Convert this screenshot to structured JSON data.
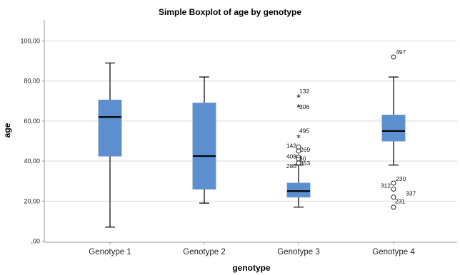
{
  "chart_data": {
    "type": "boxplot",
    "title": "Simple Boxplot of age by genotype",
    "xlabel": "genotype",
    "ylabel": "age",
    "ylim": [
      0,
      110
    ],
    "yticks": [
      0,
      20,
      40,
      60,
      80,
      100
    ],
    "ytick_labels": [
      ",00",
      "20,00",
      "40,00",
      "60,00",
      "80,00",
      "100,00"
    ],
    "grid": true,
    "categories": [
      "Genotype 1",
      "Genotype 2",
      "Genotype 3",
      "Genotype 4"
    ],
    "box_color": "#5b8fd0",
    "box_edge_color": "#6f95c8",
    "boxes": [
      {
        "category": "Genotype 1",
        "whisker_low": 7,
        "q1": 42.5,
        "median": 62,
        "q3": 70.5,
        "whisker_high": 89,
        "outliers": []
      },
      {
        "category": "Genotype 2",
        "whisker_low": 19,
        "q1": 26,
        "median": 42.5,
        "q3": 69,
        "whisker_high": 82,
        "outliers": []
      },
      {
        "category": "Genotype 3",
        "whisker_low": 17,
        "q1": 22,
        "median": 25,
        "q3": 29,
        "whisker_high": 38,
        "outliers": [
          {
            "id": "132",
            "value": 72,
            "marker": "star"
          },
          {
            "id": "306",
            "value": 67,
            "marker": "star"
          },
          {
            "id": "495",
            "value": 52,
            "marker": "star"
          },
          {
            "id": "142",
            "value": 47,
            "marker": "circle"
          },
          {
            "id": "269",
            "value": 45,
            "marker": "circle"
          },
          {
            "id": "408",
            "value": 42,
            "marker": "circle"
          },
          {
            "id": "80",
            "value": 41,
            "marker": "circle"
          },
          {
            "id": "353",
            "value": 39,
            "marker": "circle"
          },
          {
            "id": "280",
            "value": 39,
            "marker": "circle"
          }
        ]
      },
      {
        "category": "Genotype 4",
        "whisker_low": 38,
        "q1": 50,
        "median": 55,
        "q3": 63,
        "whisker_high": 82,
        "outliers": [
          {
            "id": "497",
            "value": 92,
            "marker": "circle"
          },
          {
            "id": "230",
            "value": 29,
            "marker": "circle"
          },
          {
            "id": "312",
            "value": 26,
            "marker": "circle"
          },
          {
            "id": "337",
            "value": 22,
            "marker": "circle"
          },
          {
            "id": "231",
            "value": 17,
            "marker": "circle"
          }
        ]
      }
    ]
  }
}
